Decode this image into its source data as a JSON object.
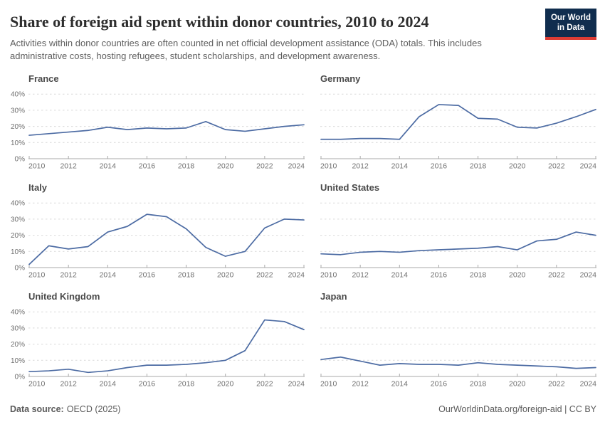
{
  "header": {
    "title": "Share of foreign aid spent within donor countries, 2010 to 2024",
    "subtitle": "Activities within donor countries are often counted in net official development assistance (ODA) totals. This includes administrative costs, hosting refugees, student scholarships, and development awareness.",
    "logo": {
      "line1": "Our World",
      "line2": "in Data",
      "bg_color": "#102d4e",
      "accent_color": "#dc3c34"
    }
  },
  "footer": {
    "source_label": "Data source:",
    "source_value": "OECD (2025)",
    "right_text": "OurWorldinData.org/foreign-aid | CC BY"
  },
  "chart_data": {
    "type": "line",
    "title": "Share of foreign aid spent within donor countries, 2010 to 2024",
    "xlabel": "",
    "ylabel": "",
    "x": [
      2010,
      2011,
      2012,
      2013,
      2014,
      2015,
      2016,
      2017,
      2018,
      2019,
      2020,
      2021,
      2022,
      2023,
      2024
    ],
    "x_ticks": [
      2010,
      2012,
      2014,
      2016,
      2018,
      2020,
      2022,
      2024
    ],
    "y_ticks": [
      0,
      10,
      20,
      30,
      40
    ],
    "y_tick_suffix": "%",
    "ylim": [
      0,
      43
    ],
    "grid": "dashed-horizontal",
    "legend": "none",
    "line_color": "#4c6ba3",
    "axis_color": "#a9a9a9",
    "gridline_color": "#d9d9d9",
    "facets": [
      {
        "title": "France",
        "values": [
          14.5,
          15.5,
          16.5,
          17.5,
          19.5,
          18,
          19,
          18.5,
          19,
          23,
          18,
          17,
          18.5,
          20,
          21
        ]
      },
      {
        "title": "Germany",
        "values": [
          12,
          12,
          12.5,
          12.5,
          12,
          26,
          33.5,
          33,
          25,
          24.5,
          19.5,
          19,
          22,
          26,
          30.5
        ]
      },
      {
        "title": "Italy",
        "values": [
          2,
          13.5,
          11.5,
          13,
          22,
          25.5,
          33,
          31.5,
          24,
          12.5,
          7,
          10,
          24.5,
          30,
          29.5
        ]
      },
      {
        "title": "United States",
        "values": [
          8.5,
          8,
          9.5,
          10,
          9.5,
          10.5,
          11,
          11.5,
          12,
          13,
          11,
          16.5,
          17.5,
          22,
          20
        ]
      },
      {
        "title": "United Kingdom",
        "values": [
          3,
          3.5,
          4.5,
          2.5,
          3.5,
          5.5,
          7,
          7,
          7.5,
          8.5,
          10,
          16,
          35,
          34,
          29
        ]
      },
      {
        "title": "Japan",
        "values": [
          10.5,
          12,
          9.5,
          7,
          8,
          7.5,
          7.5,
          7,
          8.5,
          7.5,
          7,
          6.5,
          6,
          5,
          5.5
        ]
      }
    ]
  }
}
